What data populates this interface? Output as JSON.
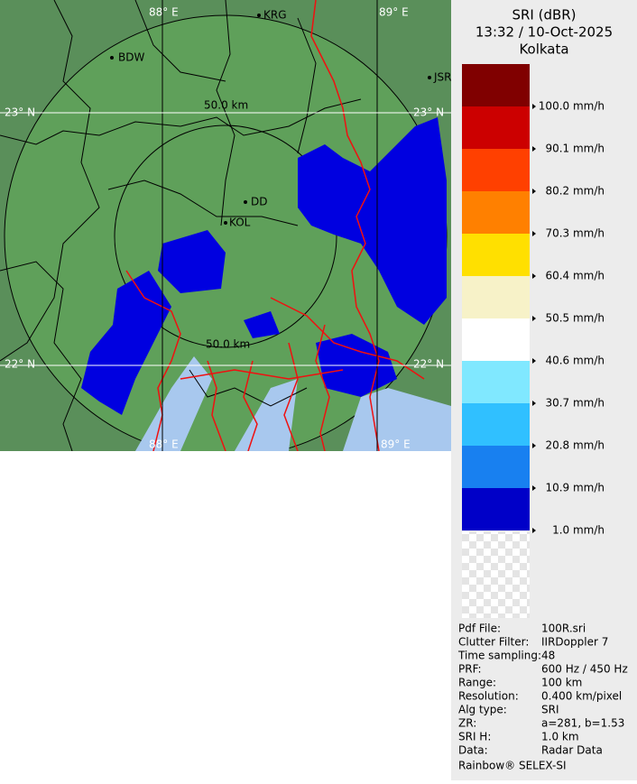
{
  "header": {
    "title": "SRI (dBR)",
    "time": "13:32 / 10-Oct-2025",
    "location": "Kolkata"
  },
  "legend": [
    {
      "label": "100.0 mm/h",
      "color": "#800000"
    },
    {
      "label": "90.1 mm/h",
      "color": "#cc0000"
    },
    {
      "label": "80.2 mm/h",
      "color": "#ff4000"
    },
    {
      "label": "70.3 mm/h",
      "color": "#ff8000"
    },
    {
      "label": "60.4 mm/h",
      "color": "#ffe000"
    },
    {
      "label": "50.5 mm/h",
      "color": "#f7f2c8"
    },
    {
      "label": "40.6 mm/h",
      "color": "#ffffff"
    },
    {
      "label": "30.7 mm/h",
      "color": "#80e8ff"
    },
    {
      "label": "20.8 mm/h",
      "color": "#30c0ff"
    },
    {
      "label": "10.9 mm/h",
      "color": "#1880f0"
    },
    {
      "label": "1.0 mm/h",
      "color": "#0000c8"
    }
  ],
  "info": [
    [
      "Pdf File:",
      "100R.sri"
    ],
    [
      "Clutter Filter:",
      "IIRDoppler 7"
    ],
    [
      "Time sampling:",
      "48"
    ],
    [
      "PRF:",
      "600 Hz / 450 Hz"
    ],
    [
      "Range:",
      "100 km"
    ],
    [
      "Resolution:",
      "0.400 km/pixel"
    ],
    [
      "Alg type:",
      "SRI"
    ],
    [
      "ZR:",
      "a=281, b=1.53"
    ],
    [
      "SRI H:",
      "1.0 km"
    ],
    [
      "Data:",
      "Radar Data"
    ]
  ],
  "footer": "Rainbow® SELEX-SI",
  "map": {
    "grid_labels": [
      "88° E",
      "89° E",
      "23° N",
      "23° N",
      "22° N",
      "22° N",
      "88° E",
      "89° E"
    ],
    "places": [
      "KRG",
      "BDW",
      "JSR",
      "DD",
      "KOL"
    ],
    "ranges": [
      "50.0 km",
      "50.0 km"
    ]
  }
}
